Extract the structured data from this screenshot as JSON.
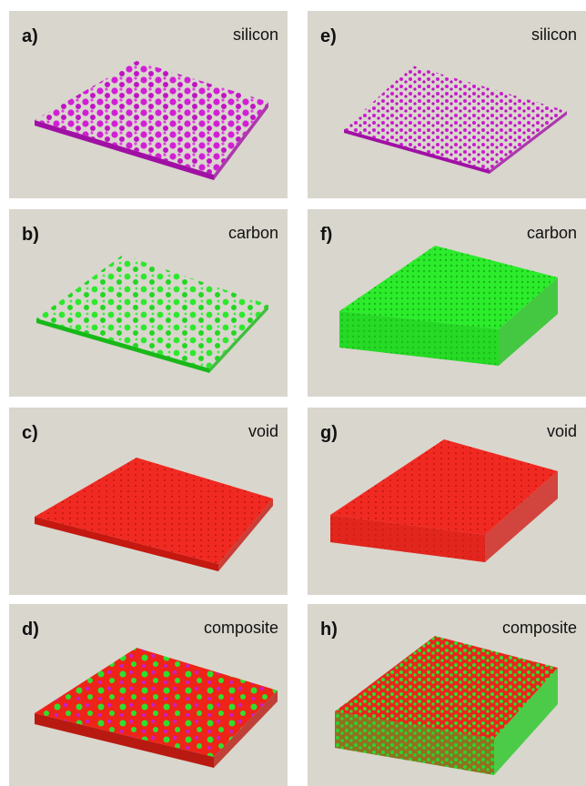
{
  "panels": [
    {
      "label": "a)",
      "title": "silicon"
    },
    {
      "label": "b)",
      "title": "carbon"
    },
    {
      "label": "c)",
      "title": "void"
    },
    {
      "label": "d)",
      "title": "composite"
    },
    {
      "label": "e)",
      "title": "silicon"
    },
    {
      "label": "f)",
      "title": "carbon"
    },
    {
      "label": "g)",
      "title": "void"
    },
    {
      "label": "h)",
      "title": "composite"
    }
  ]
}
